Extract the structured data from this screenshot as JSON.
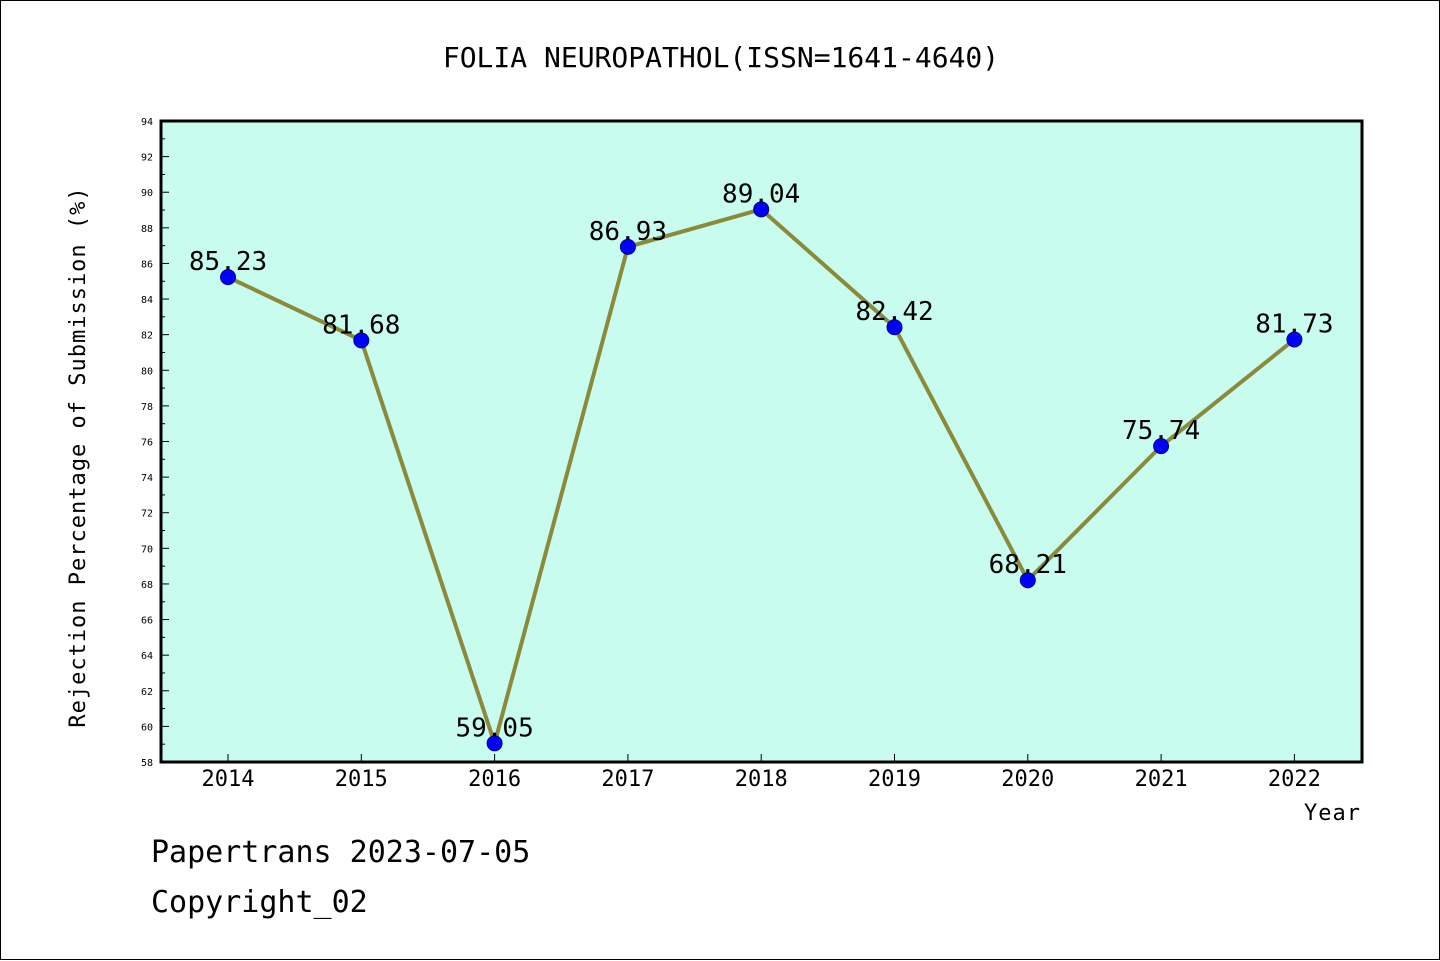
{
  "chart_data": {
    "type": "line",
    "title": "FOLIA NEUROPATHOL(ISSN=1641-4640)",
    "xlabel": "Year",
    "ylabel": "Rejection Percentage of Submission (%)",
    "categories": [
      "2014",
      "2015",
      "2016",
      "2017",
      "2018",
      "2019",
      "2020",
      "2021",
      "2022"
    ],
    "series": [
      {
        "values": [
          85.23,
          81.68,
          59.05,
          86.93,
          89.04,
          82.42,
          68.21,
          75.74,
          81.73
        ],
        "labels": [
          "85.23",
          "81.68",
          "59.05",
          "86.93",
          "89.04",
          "82.42",
          "68.21",
          "75.74",
          "81.73"
        ]
      }
    ],
    "ylim": [
      58,
      94
    ],
    "yticks": [
      "58",
      "60",
      "62",
      "64",
      "66",
      "68",
      "70",
      "72",
      "74",
      "76",
      "78",
      "80",
      "82",
      "84",
      "86",
      "88",
      "90",
      "92",
      "94"
    ],
    "grid": false,
    "legend": "none",
    "colors": {
      "plot_background": "#c8fcee",
      "line": "#8b8a3a",
      "marker": "#0000ff"
    }
  },
  "footer": {
    "source": "Papertrans 2023-07-05",
    "copyright": "Copyright_02"
  }
}
